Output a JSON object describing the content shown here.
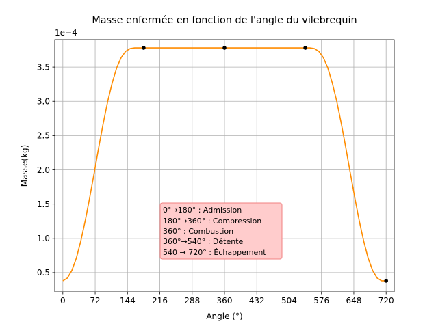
{
  "chart_data": {
    "type": "line",
    "title": "Masse enfermée en fonction de l'angle du vilebrequin",
    "xlabel": "Angle (°)",
    "ylabel": "Masse(kg)",
    "y_offset_label": "1e−4",
    "y_scale_factor": 0.0001,
    "xlim": [
      -18,
      738
    ],
    "ylim": [
      0.22,
      3.9
    ],
    "x_ticks": [
      0,
      72,
      144,
      216,
      288,
      360,
      432,
      504,
      576,
      648,
      720
    ],
    "x_tick_labels": [
      "0",
      "72",
      "144",
      "216",
      "288",
      "360",
      "432",
      "504",
      "576",
      "648",
      "720"
    ],
    "y_ticks": [
      0.5,
      1.0,
      1.5,
      2.0,
      2.5,
      3.0,
      3.5
    ],
    "y_tick_labels": [
      "0.5",
      "1.0",
      "1.5",
      "2.0",
      "2.5",
      "3.0",
      "3.5"
    ],
    "grid": true,
    "line_color": "#ff8c00",
    "marker_color": "#000000",
    "series": [
      {
        "x": [
          0,
          10,
          20,
          30,
          40,
          50,
          60,
          70,
          80,
          90,
          100,
          110,
          120,
          130,
          140,
          150,
          160,
          170,
          180,
          200,
          250,
          300,
          360,
          420,
          480,
          540,
          550,
          560,
          570,
          580,
          590,
          600,
          610,
          620,
          630,
          640,
          650,
          660,
          670,
          680,
          690,
          700,
          710,
          720
        ],
        "values": [
          0.38,
          0.42,
          0.53,
          0.71,
          0.96,
          1.26,
          1.6,
          1.96,
          2.33,
          2.68,
          3.0,
          3.27,
          3.49,
          3.64,
          3.73,
          3.77,
          3.78,
          3.78,
          3.78,
          3.78,
          3.78,
          3.78,
          3.78,
          3.78,
          3.78,
          3.78,
          3.78,
          3.77,
          3.73,
          3.64,
          3.49,
          3.27,
          3.0,
          2.68,
          2.33,
          1.96,
          1.6,
          1.26,
          0.96,
          0.71,
          0.53,
          0.42,
          0.38,
          0.38
        ]
      }
    ],
    "markers": {
      "x": [
        180,
        360,
        540,
        720
      ],
      "values": [
        3.78,
        3.78,
        3.78,
        0.38
      ]
    },
    "annotation": {
      "lines": [
        "0°→180°  : Admission",
        "180°→360° : Compression",
        "360° : Combustion",
        "360°→540° : Détente",
        "540 → 720° : Échappement"
      ],
      "box_fill": "#ffcccc",
      "box_stroke": "#f08080"
    }
  }
}
